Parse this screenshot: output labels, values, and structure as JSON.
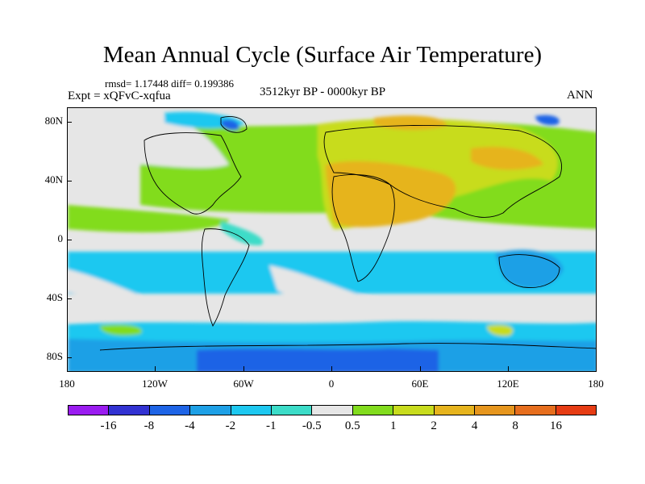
{
  "title": "Mean Annual Cycle (Surface Air Temperature)",
  "stats": "rmsd= 1.17448 diff= 0.199386",
  "experiment": "Expt = xQFvC-xqfua",
  "period": "3512kyr BP - 0000kyr BP",
  "season": "ANN",
  "y_axis_labels": [
    "80N",
    "40N",
    "0",
    "40S",
    "80S"
  ],
  "x_axis_labels": [
    "180",
    "120W",
    "60W",
    "0",
    "60E",
    "120E",
    "180"
  ],
  "colorbar": {
    "colors": [
      "#9a1cf0",
      "#3232d2",
      "#1e64e6",
      "#1ea0e6",
      "#1ec8f0",
      "#3cdcc8",
      "#e6e6e6",
      "#82dc1e",
      "#c8dc1e",
      "#e6b41e",
      "#e6961e",
      "#e66e1e",
      "#e63c14"
    ],
    "labels": [
      "-16",
      "-8",
      "-4",
      "-2",
      "-1",
      "-0.5",
      "0.5",
      "1",
      "2",
      "4",
      "8",
      "16"
    ]
  }
}
